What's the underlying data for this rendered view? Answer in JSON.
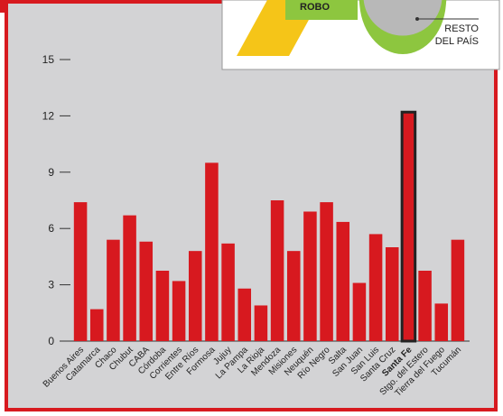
{
  "inset": {
    "label_green": "ROBO",
    "label_circle": [
      "RESTO",
      "DEL PAÍS"
    ]
  },
  "chart_data": {
    "type": "bar",
    "categories": [
      "Buenos Aires",
      "Catamarca",
      "Chaco",
      "Chubut",
      "CABA",
      "Córdoba",
      "Corrientes",
      "Entre Ríos",
      "Formosa",
      "Jujuy",
      "La Pampa",
      "La Rioja",
      "Mendoza",
      "Misiones",
      "Neuquén",
      "Río Negro",
      "Salta",
      "San Juan",
      "San Luis",
      "Santa Cruz",
      "Santa Fe",
      "Stgo. del Estero",
      "Tierra del Fuego",
      "Tucumán"
    ],
    "values": [
      7.4,
      1.7,
      5.4,
      6.7,
      5.3,
      3.75,
      3.2,
      4.8,
      9.5,
      5.2,
      2.8,
      1.9,
      7.5,
      4.8,
      6.9,
      7.4,
      6.35,
      3.1,
      5.7,
      5.0,
      12.2,
      3.75,
      2.0,
      5.4
    ],
    "color": "#d7191f",
    "highlight": "Santa Fe",
    "ylim": [
      0,
      15
    ],
    "yticks": [
      0,
      3,
      6,
      9,
      12,
      15
    ]
  }
}
